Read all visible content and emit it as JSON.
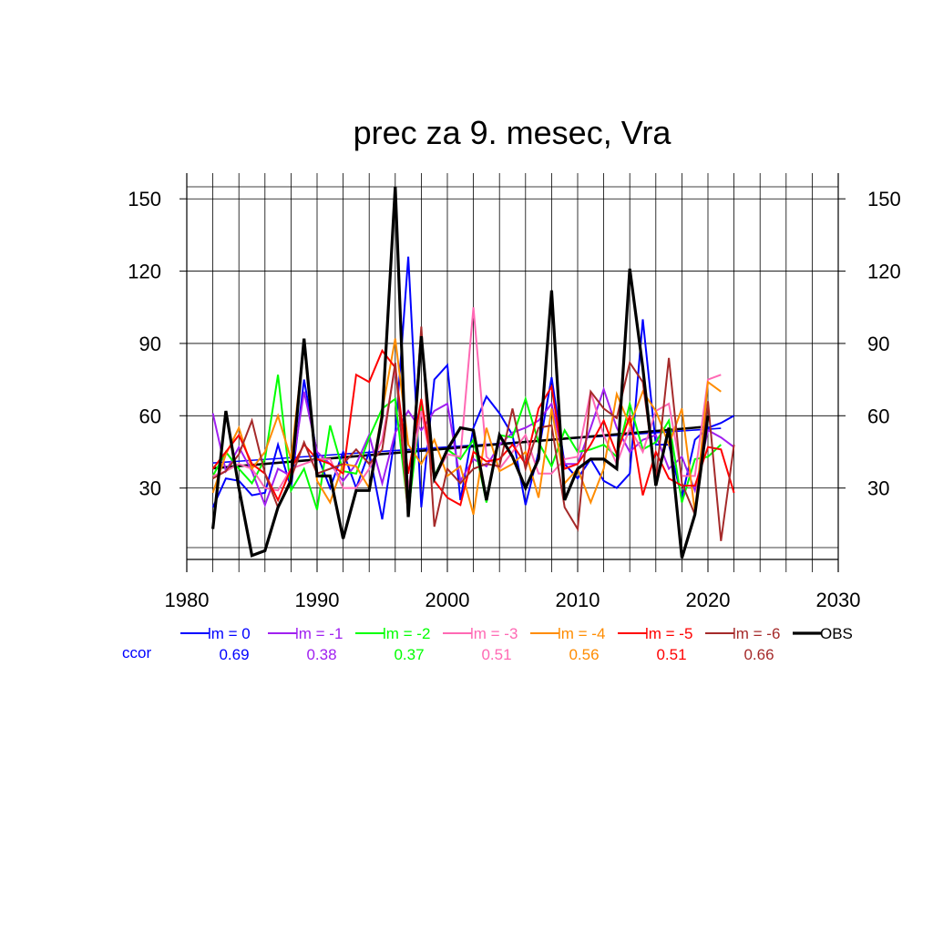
{
  "chart_data": {
    "type": "line",
    "title": "prec za 9. mesec, Vra",
    "xlabel": "",
    "ylabel": "",
    "xlim": [
      1980,
      2030
    ],
    "ylim": [
      0,
      155
    ],
    "xticks": [
      1980,
      1990,
      2000,
      2010,
      2020,
      2030
    ],
    "yticks": [
      30,
      60,
      90,
      120,
      150
    ],
    "grid": true,
    "legend_position": "bottom",
    "ccor_label": "ccor",
    "x": [
      1982,
      1983,
      1984,
      1985,
      1986,
      1987,
      1988,
      1989,
      1990,
      1991,
      1992,
      1993,
      1994,
      1995,
      1996,
      1997,
      1998,
      1999,
      2000,
      2001,
      2002,
      2003,
      2004,
      2005,
      2006,
      2007,
      2008,
      2009,
      2010,
      2011,
      2012,
      2013,
      2014,
      2015,
      2016,
      2017,
      2018,
      2019,
      2020,
      2021,
      2022
    ],
    "series": [
      {
        "name": "lm = 0",
        "ccor": "0.69",
        "color": "#0000ff",
        "width": 2,
        "values": [
          22,
          34,
          33,
          27,
          28,
          48,
          30,
          75,
          44,
          30,
          45,
          30,
          45,
          17,
          52,
          126,
          22,
          75,
          81,
          25,
          55,
          68,
          61,
          52,
          23,
          45,
          76,
          40,
          34,
          42,
          33,
          30,
          36,
          100,
          48,
          48,
          26,
          50,
          55,
          57,
          60
        ]
      },
      {
        "name": "lm = -1",
        "ccor": "0.38",
        "color": "#a020f0",
        "width": 2,
        "values": [
          61,
          37,
          47,
          37,
          23,
          38,
          35,
          70,
          45,
          40,
          33,
          40,
          52,
          32,
          53,
          62,
          54,
          62,
          65,
          33,
          42,
          39,
          48,
          53,
          55,
          58,
          65,
          40,
          40,
          55,
          71,
          55,
          45,
          50,
          52,
          38,
          43,
          29,
          54,
          51,
          47
        ]
      },
      {
        "name": "lm = -2",
        "ccor": "0.37",
        "color": "#00ff00",
        "width": 2,
        "values": [
          35,
          45,
          38,
          32,
          42,
          77,
          29,
          38,
          21,
          56,
          37,
          36,
          51,
          63,
          67,
          20,
          65,
          35,
          46,
          42,
          50,
          24,
          52,
          51,
          67,
          49,
          39,
          54,
          45,
          46,
          48,
          43,
          65,
          46,
          49,
          58,
          24,
          42,
          43,
          48,
          null
        ]
      },
      {
        "name": "lm = -3",
        "ccor": "0.51",
        "color": "#ff69b4",
        "width": 2,
        "values": [
          35,
          37,
          40,
          38,
          30,
          29,
          38,
          40,
          42,
          42,
          30,
          30,
          38,
          50,
          80,
          30,
          62,
          34,
          44,
          43,
          105,
          43,
          38,
          45,
          52,
          36,
          36,
          42,
          43,
          70,
          52,
          40,
          55,
          45,
          62,
          65,
          35,
          35,
          75,
          77,
          null
        ]
      },
      {
        "name": "lm = -4",
        "ccor": "0.56",
        "color": "#ff8c00",
        "width": 2,
        "values": [
          28,
          44,
          55,
          38,
          45,
          60,
          42,
          90,
          33,
          24,
          40,
          39,
          30,
          62,
          92,
          48,
          40,
          50,
          35,
          39,
          19,
          55,
          37,
          40,
          45,
          26,
          63,
          32,
          38,
          24,
          38,
          69,
          56,
          70,
          62,
          48,
          63,
          20,
          74,
          70,
          null
        ]
      },
      {
        "name": "lm = -5",
        "ccor": "0.51",
        "color": "#ff0000",
        "width": 2,
        "values": [
          38,
          45,
          52,
          40,
          36,
          25,
          38,
          48,
          42,
          40,
          36,
          77,
          74,
          87,
          80,
          36,
          67,
          33,
          26,
          23,
          45,
          41,
          42,
          48,
          40,
          63,
          72,
          38,
          40,
          48,
          58,
          44,
          60,
          27,
          45,
          34,
          31,
          31,
          47,
          46,
          28
        ]
      },
      {
        "name": "lm = -6",
        "ccor": "0.66",
        "color": "#a52a2a",
        "width": 2,
        "values": [
          34,
          37,
          44,
          58,
          36,
          22,
          34,
          49,
          36,
          38,
          40,
          46,
          40,
          46,
          82,
          18,
          97,
          14,
          38,
          32,
          38,
          40,
          39,
          63,
          38,
          55,
          56,
          22,
          13,
          70,
          63,
          59,
          82,
          74,
          33,
          84,
          32,
          19,
          66,
          8,
          48
        ]
      },
      {
        "name": "OBS",
        "ccor": "",
        "color": "#000000",
        "width": 3.2,
        "values": [
          13,
          62,
          30,
          2,
          4,
          22,
          33,
          92,
          35,
          35,
          9,
          29,
          29,
          60,
          155,
          18,
          93,
          34,
          46,
          55,
          54,
          25,
          52,
          43,
          30,
          42,
          112,
          25,
          38,
          42,
          42,
          38,
          121,
          80,
          31,
          55,
          1,
          19,
          60,
          null,
          null
        ]
      }
    ],
    "trends": [
      {
        "name": "lm = 0 trend",
        "color": "#0000ff",
        "x": [
          1982,
          2021
        ],
        "y": [
          40.4,
          54.8
        ]
      },
      {
        "name": "OBS trend",
        "color": "#000000",
        "x": [
          1982,
          2020
        ],
        "y": [
          38.2,
          55.5
        ]
      }
    ]
  }
}
